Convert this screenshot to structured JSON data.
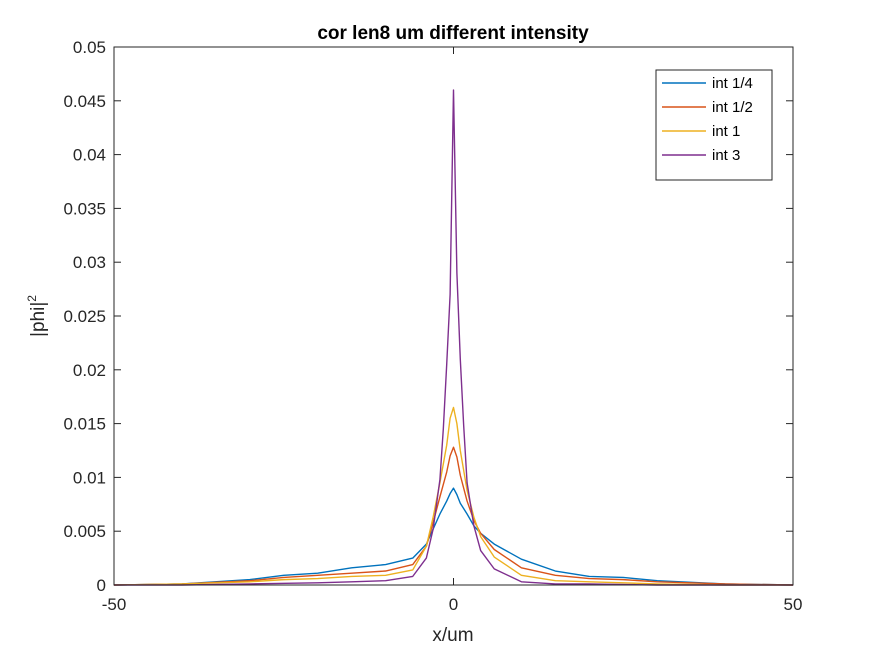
{
  "chart_data": {
    "type": "line",
    "title": "cor len8 um different intensity",
    "xlabel": "x/um",
    "ylabel_base": "|phi|",
    "ylabel_sup": "2",
    "xlim": [
      -50,
      50
    ],
    "ylim": [
      0,
      0.05
    ],
    "xticks": [
      -50,
      0,
      50
    ],
    "xtick_labels": [
      "-50",
      "0",
      "50"
    ],
    "yticks": [
      0,
      0.005,
      0.01,
      0.015,
      0.02,
      0.025,
      0.03,
      0.035,
      0.04,
      0.045,
      0.05
    ],
    "ytick_labels": [
      "0",
      "0.005",
      "0.01",
      "0.015",
      "0.02",
      "0.025",
      "0.03",
      "0.035",
      "0.04",
      "0.045",
      "0.05"
    ],
    "grid": false,
    "legend_position": "top-right",
    "series": [
      {
        "name": "int 1/4",
        "color": "#0072BD",
        "x": [
          -50,
          -40,
          -30,
          -25,
          -20,
          -15,
          -10,
          -6,
          -4,
          -3,
          -2,
          -1,
          -0.5,
          0,
          0.5,
          1,
          2,
          3,
          4,
          6,
          10,
          15,
          20,
          25,
          30,
          40,
          50
        ],
        "y": [
          0,
          0.0001,
          0.0005,
          0.0009,
          0.0011,
          0.0016,
          0.0019,
          0.0025,
          0.0038,
          0.0052,
          0.0066,
          0.0078,
          0.0085,
          0.009,
          0.0084,
          0.0076,
          0.0066,
          0.0055,
          0.0048,
          0.0038,
          0.0024,
          0.0013,
          0.0008,
          0.0007,
          0.0004,
          0.0001,
          0
        ]
      },
      {
        "name": "int 1/2",
        "color": "#D95319",
        "x": [
          -50,
          -40,
          -30,
          -25,
          -20,
          -15,
          -10,
          -6,
          -4,
          -3,
          -2,
          -1,
          -0.5,
          0,
          0.5,
          1,
          2,
          3,
          4,
          6,
          10,
          15,
          20,
          25,
          30,
          40,
          50
        ],
        "y": [
          0,
          0.0001,
          0.0004,
          0.0007,
          0.0009,
          0.0011,
          0.0013,
          0.0019,
          0.0036,
          0.0058,
          0.0082,
          0.0105,
          0.012,
          0.0128,
          0.0119,
          0.0102,
          0.0078,
          0.006,
          0.0048,
          0.0033,
          0.0016,
          0.0009,
          0.0006,
          0.0005,
          0.0003,
          0.0001,
          0
        ]
      },
      {
        "name": "int 1",
        "color": "#EDB120",
        "x": [
          -50,
          -40,
          -30,
          -25,
          -20,
          -15,
          -10,
          -6,
          -4,
          -3,
          -2,
          -1,
          -0.5,
          0,
          0.5,
          1,
          2,
          3,
          4,
          6,
          10,
          15,
          20,
          25,
          30,
          40,
          50
        ],
        "y": [
          0,
          0.0001,
          0.0003,
          0.0005,
          0.0006,
          0.0008,
          0.0009,
          0.0014,
          0.0036,
          0.0063,
          0.0095,
          0.013,
          0.0155,
          0.0165,
          0.015,
          0.0125,
          0.0088,
          0.0063,
          0.0045,
          0.0026,
          0.0009,
          0.0004,
          0.0003,
          0.0002,
          0.0001,
          0,
          0
        ]
      },
      {
        "name": "int 3",
        "color": "#7E2F8E",
        "x": [
          -50,
          -40,
          -30,
          -20,
          -15,
          -10,
          -6,
          -4,
          -3,
          -2,
          -1.5,
          -1,
          -0.5,
          0,
          0.5,
          1,
          1.5,
          2,
          3,
          4,
          6,
          10,
          15,
          20,
          30,
          40,
          50
        ],
        "y": [
          0,
          0,
          0.0001,
          0.0002,
          0.0003,
          0.0004,
          0.0008,
          0.0025,
          0.0052,
          0.0098,
          0.0145,
          0.0205,
          0.027,
          0.046,
          0.029,
          0.021,
          0.0148,
          0.0095,
          0.0055,
          0.0032,
          0.0015,
          0.0003,
          0.0001,
          0.0001,
          0,
          0,
          0
        ]
      }
    ]
  }
}
